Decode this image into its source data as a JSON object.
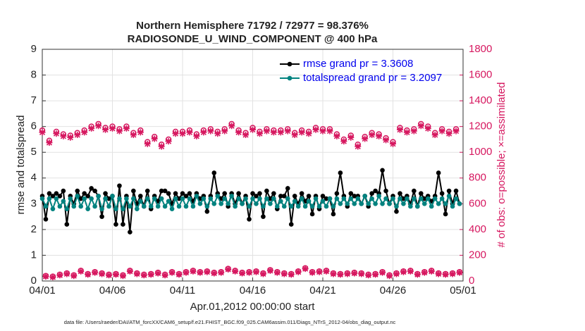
{
  "chart_data": {
    "type": "line",
    "title": "Northern Hemisphere 71792 / 72977 = 98.376%",
    "subtitle": "RADIOSONDE_U_WIND_COMPONENT @ 400 hPa",
    "xlabel": "Apr.01,2012 00:00:00 start",
    "ylabel": "rmse and totalspread",
    "y2label": "# of obs: o=possible; ×=assimilated",
    "footnote": "data file: /Users/raeder/DAI/ATM_forcXX/CAM6_setup/f.e21.FHIST_BGC.f09_025.CAM6assim.011/Diags_NTrS_2012-04/obs_diag_output.nc",
    "legend": "upper right",
    "grid": true,
    "xlim": [
      0,
      30
    ],
    "xticks": [
      {
        "value": 0,
        "label": "04/01"
      },
      {
        "value": 5,
        "label": "04/06"
      },
      {
        "value": 10,
        "label": "04/11"
      },
      {
        "value": 15,
        "label": "04/16"
      },
      {
        "value": 20,
        "label": "04/21"
      },
      {
        "value": 25,
        "label": "04/26"
      },
      {
        "value": 30,
        "label": "05/01"
      }
    ],
    "ylim": [
      0,
      9
    ],
    "yticks": [
      0,
      1,
      2,
      3,
      4,
      5,
      6,
      7,
      8,
      9
    ],
    "y2lim": [
      0,
      1800
    ],
    "y2ticks": [
      0,
      200,
      400,
      600,
      800,
      1000,
      1200,
      1400,
      1600,
      1800
    ],
    "x": [
      0,
      0.25,
      0.5,
      0.75,
      1,
      1.25,
      1.5,
      1.75,
      2,
      2.25,
      2.5,
      2.75,
      3,
      3.25,
      3.5,
      3.75,
      4,
      4.25,
      4.5,
      4.75,
      5,
      5.25,
      5.5,
      5.75,
      6,
      6.25,
      6.5,
      6.75,
      7,
      7.25,
      7.5,
      7.75,
      8,
      8.25,
      8.5,
      8.75,
      9,
      9.25,
      9.5,
      9.75,
      10,
      10.25,
      10.5,
      10.75,
      11,
      11.25,
      11.5,
      11.75,
      12,
      12.25,
      12.5,
      12.75,
      13,
      13.25,
      13.5,
      13.75,
      14,
      14.25,
      14.5,
      14.75,
      15,
      15.25,
      15.5,
      15.75,
      16,
      16.25,
      16.5,
      16.75,
      17,
      17.25,
      17.5,
      17.75,
      18,
      18.25,
      18.5,
      18.75,
      19,
      19.25,
      19.5,
      19.75,
      20,
      20.25,
      20.5,
      20.75,
      21,
      21.25,
      21.5,
      21.75,
      22,
      22.25,
      22.5,
      22.75,
      23,
      23.25,
      23.5,
      23.75,
      24,
      24.25,
      24.5,
      24.75,
      25,
      25.25,
      25.5,
      25.75,
      26,
      26.25,
      26.5,
      26.75,
      27,
      27.25,
      27.5,
      27.75,
      28,
      28.25,
      28.5,
      28.75,
      29,
      29.25,
      29.5,
      29.75
    ],
    "series": [
      {
        "name": "rmse grand pr = 3.3608",
        "color": "#000000",
        "marker": "dot",
        "line": true,
        "values": [
          3.3,
          2.4,
          3.4,
          3.3,
          3.4,
          3.3,
          3.5,
          2.2,
          3.3,
          3.0,
          3.5,
          3.2,
          3.4,
          3.3,
          3.6,
          3.5,
          3.3,
          2.5,
          3.4,
          3.2,
          3.3,
          2.2,
          3.7,
          2.2,
          3.3,
          1.9,
          3.5,
          3.0,
          3.3,
          2.9,
          3.5,
          2.8,
          3.3,
          3.1,
          3.5,
          3.5,
          3.4,
          3.0,
          3.4,
          3.2,
          3.4,
          3.3,
          3.4,
          3.1,
          3.4,
          3.2,
          3.3,
          2.7,
          3.3,
          4.2,
          3.4,
          3.2,
          3.4,
          2.9,
          3.4,
          3.0,
          3.4,
          3.0,
          3.3,
          2.4,
          3.4,
          3.3,
          3.4,
          2.5,
          3.5,
          3.2,
          3.4,
          2.8,
          3.3,
          3.3,
          3.6,
          2.2,
          3.3,
          3.0,
          3.4,
          3.1,
          3.3,
          2.6,
          3.3,
          2.8,
          3.3,
          3.2,
          3.2,
          2.6,
          3.4,
          4.2,
          3.3,
          2.9,
          3.4,
          3.3,
          3.3,
          3.0,
          3.3,
          2.9,
          3.4,
          3.5,
          3.4,
          4.3,
          3.5,
          3.0,
          3.3,
          2.7,
          3.4,
          3.2,
          3.3,
          3.0,
          3.5,
          2.9,
          3.4,
          3.2,
          3.3,
          3.1,
          3.3,
          4.2,
          3.4,
          2.6,
          3.5,
          3.0,
          3.5,
          3.0
        ]
      },
      {
        "name": "totalspread grand pr = 3.2097",
        "color": "#00827f",
        "marker": "dot",
        "line": true,
        "values": [
          3.2,
          2.9,
          3.2,
          2.8,
          3.2,
          2.9,
          3.1,
          2.8,
          3.2,
          2.9,
          3.3,
          2.9,
          3.2,
          2.8,
          3.2,
          2.9,
          3.3,
          2.8,
          3.2,
          2.9,
          3.3,
          2.8,
          3.2,
          2.8,
          3.2,
          2.9,
          3.2,
          2.8,
          3.1,
          2.9,
          3.2,
          2.9,
          3.2,
          2.9,
          3.2,
          2.9,
          3.1,
          2.8,
          3.2,
          2.9,
          3.2,
          2.9,
          3.2,
          2.9,
          3.3,
          3.0,
          3.2,
          2.9,
          3.2,
          3.0,
          3.3,
          3.0,
          3.2,
          3.0,
          3.3,
          2.9,
          3.2,
          3.0,
          3.2,
          2.9,
          3.2,
          3.0,
          3.2,
          2.9,
          3.2,
          3.0,
          3.2,
          2.9,
          3.1,
          2.9,
          3.2,
          2.9,
          3.1,
          2.9,
          3.2,
          2.9,
          3.1,
          2.9,
          3.2,
          2.9,
          3.1,
          2.9,
          3.2,
          2.9,
          3.2,
          3.0,
          3.2,
          3.0,
          3.2,
          3.0,
          3.2,
          3.0,
          3.3,
          3.0,
          3.2,
          3.0,
          3.3,
          3.0,
          3.2,
          3.0,
          3.2,
          2.9,
          3.2,
          3.0,
          3.2,
          2.9,
          3.2,
          2.9,
          3.2,
          3.0,
          3.2,
          2.9,
          3.2,
          3.0,
          3.2,
          3.0,
          3.3,
          2.9,
          3.2,
          3.0
        ]
      },
      {
        "color": "#d6175f",
        "marker": "circle",
        "line": false,
        "axis": "y2",
        "values": [
          1170,
          40,
          1090,
          35,
          1160,
          50,
          1140,
          60,
          1130,
          45,
          1150,
          80,
          1170,
          55,
          1200,
          70,
          1220,
          60,
          1190,
          50,
          1200,
          55,
          1180,
          45,
          1200,
          80,
          1150,
          60,
          1170,
          50,
          1080,
          55,
          1120,
          65,
          1060,
          50,
          1100,
          70,
          1160,
          55,
          1160,
          70,
          1170,
          80,
          1140,
          70,
          1170,
          75,
          1180,
          65,
          1160,
          70,
          1180,
          95,
          1220,
          80,
          1170,
          65,
          1150,
          70,
          1190,
          75,
          1160,
          60,
          1180,
          85,
          1170,
          70,
          1170,
          60,
          1180,
          55,
          1150,
          75,
          1170,
          100,
          1160,
          70,
          1190,
          75,
          1180,
          80,
          1180,
          60,
          1140,
          55,
          1100,
          60,
          1130,
          65,
          1060,
          60,
          1120,
          50,
          1150,
          55,
          1140,
          70,
          1110,
          45,
          1080,
          60,
          1190,
          75,
          1170,
          80,
          1180,
          55,
          1220,
          70,
          1200,
          80,
          1150,
          60,
          1180,
          55,
          1160,
          60,
          1180,
          70
        ]
      },
      {
        "color": "#d6175f",
        "marker": "cross",
        "line": false,
        "axis": "y2",
        "values": [
          1155,
          35,
          1075,
          30,
          1145,
          45,
          1125,
          55,
          1115,
          40,
          1135,
          75,
          1155,
          50,
          1185,
          65,
          1205,
          55,
          1175,
          45,
          1185,
          50,
          1165,
          40,
          1185,
          75,
          1135,
          55,
          1155,
          45,
          1065,
          50,
          1105,
          60,
          1045,
          45,
          1085,
          65,
          1145,
          50,
          1145,
          65,
          1155,
          75,
          1125,
          65,
          1155,
          70,
          1165,
          60,
          1145,
          65,
          1165,
          90,
          1205,
          75,
          1155,
          60,
          1135,
          65,
          1175,
          70,
          1145,
          55,
          1165,
          80,
          1155,
          65,
          1155,
          55,
          1165,
          50,
          1135,
          70,
          1155,
          95,
          1145,
          65,
          1175,
          70,
          1165,
          75,
          1165,
          55,
          1125,
          50,
          1085,
          55,
          1115,
          60,
          1045,
          55,
          1105,
          45,
          1135,
          50,
          1125,
          65,
          1095,
          40,
          1065,
          55,
          1175,
          70,
          1155,
          75,
          1165,
          50,
          1205,
          65,
          1185,
          75,
          1135,
          55,
          1165,
          50,
          1145,
          55,
          1165,
          65
        ]
      }
    ]
  }
}
